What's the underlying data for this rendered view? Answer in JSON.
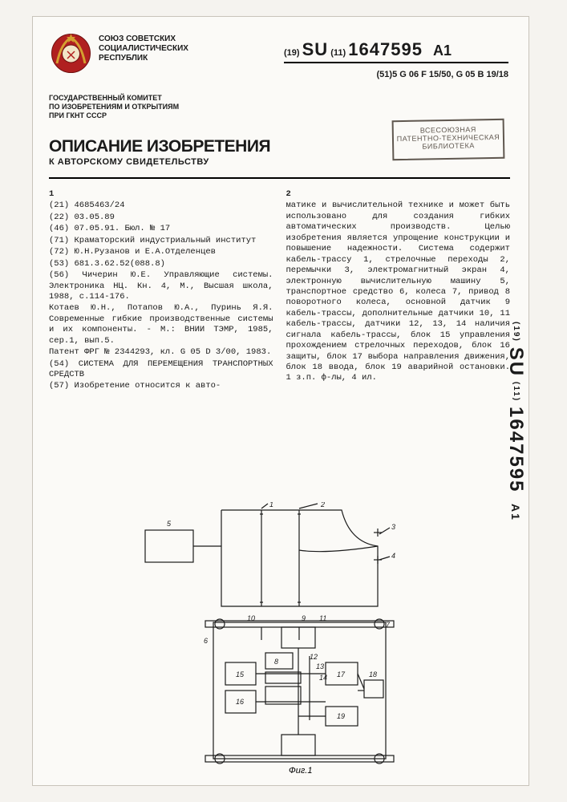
{
  "union": "СОЮЗ СОВЕТСКИХ\nСОЦИАЛИСТИЧЕСКИХ\nРЕСПУБЛИК",
  "pub": {
    "prefix": "(19)",
    "cc": "SU",
    "mid": "(11)",
    "number": "1647595",
    "suffix": "A1"
  },
  "ipc": "(51)5 G 06 F 15/50, G 05 B 19/18",
  "committee": "ГОСУДАРСТВЕННЫЙ КОМИТЕТ\nПО ИЗОБРЕТЕНИЯМ И ОТКРЫТИЯМ\nПРИ ГКНТ СССР",
  "title": "ОПИСАНИЕ ИЗОБРЕТЕНИЯ",
  "subtitle": "К АВТОРСКОМУ СВИДЕТЕЛЬСТВУ",
  "stamp": {
    "l1": "ВСЕСОЮЗНАЯ",
    "l2": "ПАТЕНТНО-ТЕХНИЧЕСКАЯ",
    "l3": "БИБЛИОТЕКА"
  },
  "col1": [
    "1",
    "(21) 4685463/24",
    "(22) 03.05.89",
    "(46) 07.05.91. Бюл. № 17",
    "(71) Краматорский индустриальный институт",
    "(72) Ю.Н.Рузанов и Е.А.Отделенцев",
    "(53) 681.3.62.52(088.8)",
    "(56) Чичерин Ю.Е. Управляющие системы. Электроника НЦ. Кн. 4, М., Высшая школа, 1988, с.114-176.",
    "Котаев Ю.Н., Потапов Ю.А., Пуринь Я.Я. Современные гибкие производственные системы и их компоненты. - М.: ВНИИ ТЭМР, 1985, сер.1, вып.5.",
    "Патент ФРГ № 2344293, кл. G 05 D 3/00, 1983.",
    "(54) СИСТЕМА ДЛЯ ПЕРЕМЕЩЕНИЯ ТРАНСПОРТНЫХ СРЕДСТВ",
    "(57) Изобретение относится к авто-"
  ],
  "col2": [
    "2",
    "матике и вычислительной технике и может быть использовано для создания гибких автоматических производств. Целью изобретения является упрощение конструкции и повышение надежности. Система содержит кабель-трассу 1, стрелочные переходы 2, перемычки 3, электромагнитный экран 4, электронную вычислительную машину 5, транспортное средство 6, колеса 7, привод 8 поворотного колеса, основной датчик 9 кабель-трассы, дополнительные датчики 10, 11 кабель-трассы, датчики 12, 13, 14 наличия сигнала кабель-трассы, блок 15 управления прохождением стрелочных переходов, блок 16 защиты, блок 17 выбора направления движения, блок 18 ввода, блок 19 аварийной остановки. 1 з.п. ф-лы, 4 ил."
  ],
  "fig_label": "Фиг.1",
  "spine": {
    "prefix": "(19)",
    "cc": "SU",
    "mid": "(11)",
    "number": "1647595",
    "suffix": "A1"
  },
  "diagram": {
    "callouts": [
      "1",
      "2",
      "3",
      "4",
      "5",
      "6",
      "7",
      "8",
      "9",
      "10",
      "11",
      "12",
      "13",
      "14",
      "15",
      "16",
      "17",
      "18",
      "19"
    ],
    "stroke": "#1a1a1a",
    "fill": "#fbfaf7"
  }
}
